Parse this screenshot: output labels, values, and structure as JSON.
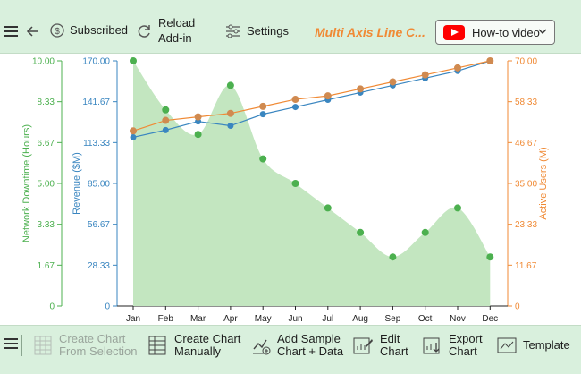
{
  "toolbar": {
    "subscribed_label": "Subscribed",
    "reload_label_1": "Reload",
    "reload_label_2": "Add-in",
    "settings_label": "Settings",
    "title": "Multi Axis Line C...",
    "howto_label": "How-to video"
  },
  "bottom": {
    "create_selection_1": "Create Chart",
    "create_selection_2": "From Selection",
    "create_manual_1": "Create Chart",
    "create_manual_2": "Manually",
    "add_sample_1": "Add Sample",
    "add_sample_2": "Chart + Data",
    "edit_1": "Edit",
    "edit_2": "Chart",
    "export_1": "Export",
    "export_2": "Chart",
    "template": "Template"
  },
  "colors": {
    "downtime": "#4cb04f",
    "downtime_fill": "#c3e6c0",
    "revenue": "#3a86c0",
    "users": "#f08a35",
    "users_marker": "#d08a50"
  },
  "chart_data": {
    "type": "line",
    "categories": [
      "Jan",
      "Feb",
      "Mar",
      "Apr",
      "May",
      "Jun",
      "Jul",
      "Aug",
      "Sep",
      "Oct",
      "Nov",
      "Dec"
    ],
    "series": [
      {
        "name": "Network Downtime (Hours)",
        "axis": "left-outer",
        "style": "area",
        "values": [
          10.0,
          8.0,
          7.0,
          9.0,
          6.0,
          5.0,
          4.0,
          3.0,
          2.0,
          3.0,
          4.0,
          2.0
        ]
      },
      {
        "name": "Revenue ($M)",
        "axis": "left-inner",
        "values": [
          117,
          122,
          128,
          125,
          133,
          138,
          143,
          148,
          153,
          158,
          163,
          170
        ]
      },
      {
        "name": "Active Users (M)",
        "axis": "right",
        "values": [
          50.0,
          53.0,
          54.0,
          55.0,
          57.0,
          59.0,
          60.0,
          62.0,
          64.0,
          66.0,
          68.0,
          70.0
        ]
      }
    ],
    "axes": {
      "left_outer": {
        "label": "Network Downtime (Hours)",
        "ylim": [
          0,
          10
        ],
        "ticks": [
          "0",
          "1.67",
          "3.33",
          "5.00",
          "6.67",
          "8.33",
          "10.00"
        ]
      },
      "left_inner": {
        "label": "Revenue ($M)",
        "ylim": [
          0,
          170
        ],
        "ticks": [
          "0",
          "28.33",
          "56.67",
          "85.00",
          "113.33",
          "141.67",
          "170.00"
        ]
      },
      "right": {
        "label": "Active Users (M)",
        "ylim": [
          0,
          70
        ],
        "ticks": [
          "0",
          "11.67",
          "23.33",
          "35.00",
          "46.67",
          "58.33",
          "70.00"
        ]
      }
    },
    "grid": false,
    "legend": "none"
  }
}
